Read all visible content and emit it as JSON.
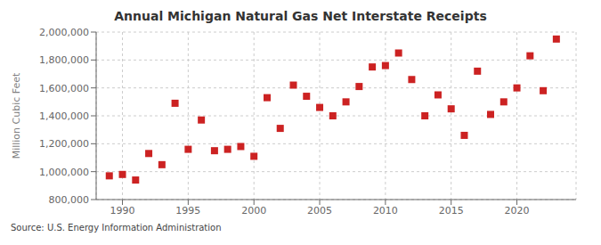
{
  "chart_data": {
    "type": "scatter",
    "title": "Annual Michigan Natural Gas Net Interstate Receipts",
    "ylabel": "Million Cubic Feet",
    "annotations": [
      "Source: U.S. Energy Information Administration"
    ],
    "x": [
      1989,
      1990,
      1991,
      1992,
      1993,
      1994,
      1995,
      1996,
      1997,
      1998,
      1999,
      2000,
      2001,
      2002,
      2003,
      2004,
      2005,
      2006,
      2007,
      2008,
      2009,
      2010,
      2011,
      2012,
      2013,
      2014,
      2015,
      2016,
      2017,
      2018,
      2019,
      2020,
      2021,
      2022,
      2023
    ],
    "values": [
      970000,
      980000,
      940000,
      1130000,
      1050000,
      1490000,
      1160000,
      1370000,
      1150000,
      1160000,
      1180000,
      1110000,
      1530000,
      1310000,
      1620000,
      1540000,
      1460000,
      1400000,
      1500000,
      1610000,
      1750000,
      1760000,
      1850000,
      1660000,
      1400000,
      1550000,
      1450000,
      1260000,
      1720000,
      1410000,
      1500000,
      1600000,
      1830000,
      1580000,
      1950000
    ],
    "color": "#cc2222",
    "marker": "square",
    "xlim": [
      1988,
      2024.5
    ],
    "xticks": [
      1990,
      1995,
      2000,
      2005,
      2010,
      2015,
      2020
    ],
    "ylim": [
      800000,
      2000000
    ],
    "yticks": [
      {
        "value": 800000,
        "label": "800,000"
      },
      {
        "value": 1000000,
        "label": "1,000,000"
      },
      {
        "value": 1200000,
        "label": "1,200,000"
      },
      {
        "value": 1400000,
        "label": "1,400,000"
      },
      {
        "value": 1600000,
        "label": "1,600,000"
      },
      {
        "value": 1800000,
        "label": "1,800,000"
      },
      {
        "value": 2000000,
        "label": "2,000,000"
      }
    ],
    "grid": true
  }
}
